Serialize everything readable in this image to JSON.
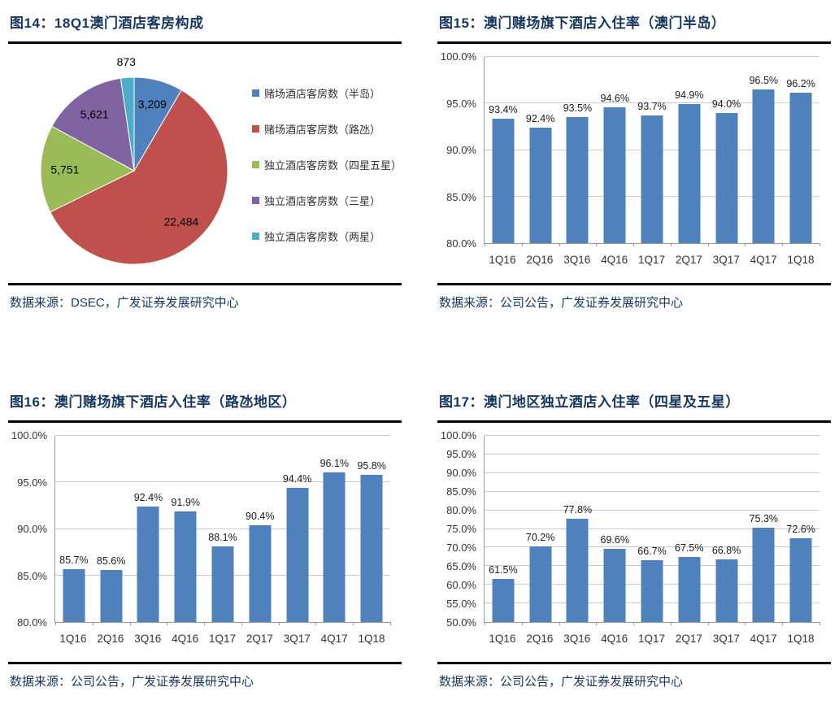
{
  "chart_data": [
    {
      "id": "fig14",
      "type": "pie",
      "title": "图14：18Q1澳门酒店客房构成",
      "source": "数据来源：DSEC，广发证券发展研究中心",
      "labels": [
        "赌场酒店客房数（半岛）",
        "赌场酒店客房数（路氹）",
        "独立酒店客房数（四星五星）",
        "独立酒店客房数（三星）",
        "独立酒店客房数（两星）"
      ],
      "values": [
        3209,
        22484,
        5751,
        5621,
        873
      ],
      "value_labels": [
        "3,209",
        "22,484",
        "5,751",
        "5,621",
        "873"
      ],
      "colors": [
        "#4F81BD",
        "#C0504D",
        "#9BBB59",
        "#8064A2",
        "#4BACC6"
      ],
      "legend_position": "right",
      "start_angle_deg": 0,
      "direction": "clockwise"
    },
    {
      "id": "fig15",
      "type": "bar",
      "title": "图15：澳门赌场旗下酒店入住率（澳门半岛）",
      "source": "数据来源：公司公告，广发证券发展研究中心",
      "categories": [
        "1Q16",
        "2Q16",
        "3Q16",
        "4Q16",
        "1Q17",
        "2Q17",
        "3Q17",
        "4Q17",
        "1Q18"
      ],
      "values": [
        93.4,
        92.4,
        93.5,
        94.6,
        93.7,
        94.9,
        94.0,
        96.5,
        96.2
      ],
      "value_labels": [
        "93.4%",
        "92.4%",
        "93.5%",
        "94.6%",
        "93.7%",
        "94.9%",
        "94.0%",
        "96.5%",
        "96.2%"
      ],
      "ylim": [
        80,
        100
      ],
      "ytick_step": 5,
      "ytick_suffix": "%",
      "bar_color": "#4F81BD",
      "grid": true,
      "legend_position": "none"
    },
    {
      "id": "fig16",
      "type": "bar",
      "title": "图16：澳门赌场旗下酒店入住率（路氹地区）",
      "source": "数据来源：公司公告，广发证券发展研究中心",
      "categories": [
        "1Q16",
        "2Q16",
        "3Q16",
        "4Q16",
        "1Q17",
        "2Q17",
        "3Q17",
        "4Q17",
        "1Q18"
      ],
      "values": [
        85.7,
        85.6,
        92.4,
        91.9,
        88.1,
        90.4,
        94.4,
        96.1,
        95.8
      ],
      "value_labels": [
        "85.7%",
        "85.6%",
        "92.4%",
        "91.9%",
        "88.1%",
        "90.4%",
        "94.4%",
        "96.1%",
        "95.8%"
      ],
      "ylim": [
        80,
        100
      ],
      "ytick_step": 5,
      "ytick_suffix": "%",
      "bar_color": "#4F81BD",
      "grid": true,
      "legend_position": "none"
    },
    {
      "id": "fig17",
      "type": "bar",
      "title": "图17：澳门地区独立酒店入住率（四星及五星）",
      "source": "数据来源：公司公告，广发证券发展研究中心",
      "categories": [
        "1Q16",
        "2Q16",
        "3Q16",
        "4Q16",
        "1Q17",
        "2Q17",
        "3Q17",
        "4Q17",
        "1Q18"
      ],
      "values": [
        61.5,
        70.2,
        77.8,
        69.6,
        66.7,
        67.5,
        66.8,
        75.3,
        72.6
      ],
      "value_labels": [
        "61.5%",
        "70.2%",
        "77.8%",
        "69.6%",
        "66.7%",
        "67.5%",
        "66.8%",
        "75.3%",
        "72.6%"
      ],
      "ylim": [
        50,
        100
      ],
      "ytick_step": 5,
      "ytick_suffix": "%",
      "bar_color": "#4F81BD",
      "grid": true,
      "legend_position": "none"
    }
  ],
  "styles": {
    "title_color": "#17365D",
    "source_color": "#17365D",
    "rule_color": "#000000",
    "bar_color": "#4F81BD",
    "gridline_color": "#C9C9C9",
    "axis_color": "#9A9A9A",
    "tick_label_color": "#333333",
    "data_label_color": "#1A1A1A"
  }
}
